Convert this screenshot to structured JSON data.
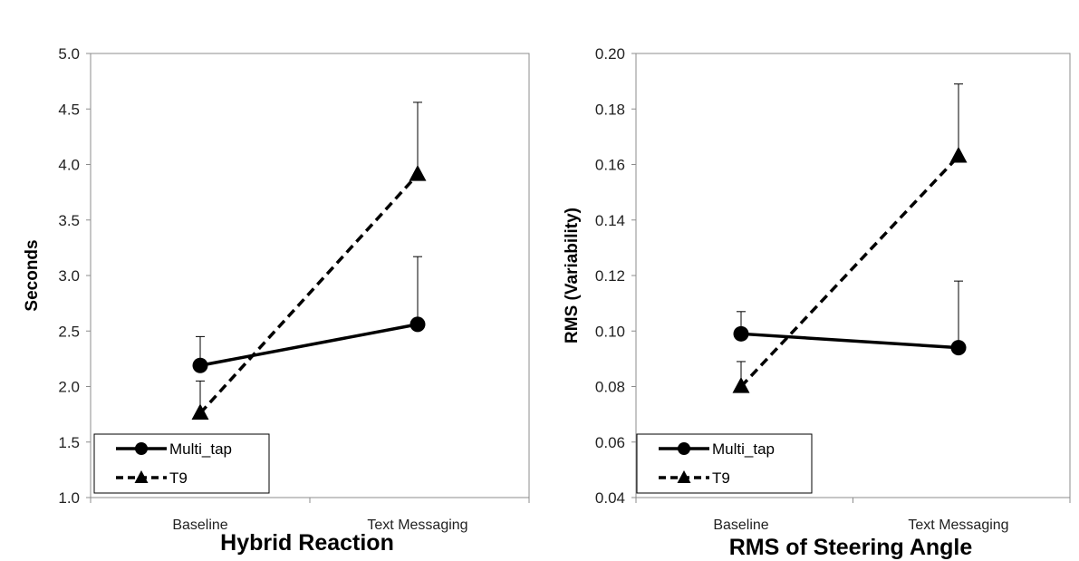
{
  "chart_data": [
    {
      "type": "line",
      "title": "Hybrid Reaction",
      "xlabel": "",
      "ylabel": "Seconds",
      "categories": [
        "Baseline",
        "Text Messaging"
      ],
      "ylim": [
        1.0,
        5.0
      ],
      "yticks": [
        "1.0",
        "1.5",
        "2.0",
        "2.5",
        "3.0",
        "3.5",
        "4.0",
        "4.5",
        "5.0"
      ],
      "grid": false,
      "legend": "bottom-left",
      "series": [
        {
          "name": "Multi_tap",
          "values": [
            2.19,
            2.56
          ],
          "error_upper": [
            2.45,
            3.17
          ],
          "marker": "circle",
          "line": "solid",
          "color": "#000000"
        },
        {
          "name": "T9",
          "values": [
            1.76,
            3.91
          ],
          "error_upper": [
            2.05,
            4.56
          ],
          "marker": "triangle",
          "line": "dashed",
          "color": "#000000"
        }
      ]
    },
    {
      "type": "line",
      "title": "RMS of Steering Angle",
      "xlabel": "",
      "ylabel": "RMS (Variability)",
      "categories": [
        "Baseline",
        "Text Messaging"
      ],
      "ylim": [
        0.04,
        0.2
      ],
      "yticks": [
        "0.04",
        "0.06",
        "0.08",
        "0.10",
        "0.12",
        "0.14",
        "0.16",
        "0.18",
        "0.20"
      ],
      "grid": false,
      "legend": "bottom-left",
      "series": [
        {
          "name": "Multi_tap",
          "values": [
            0.099,
            0.094
          ],
          "error_upper": [
            0.107,
            0.118
          ],
          "marker": "circle",
          "line": "solid",
          "color": "#000000"
        },
        {
          "name": "T9",
          "values": [
            0.08,
            0.163
          ],
          "error_upper": [
            0.089,
            0.189
          ],
          "marker": "triangle",
          "line": "dashed",
          "color": "#000000"
        }
      ]
    }
  ]
}
